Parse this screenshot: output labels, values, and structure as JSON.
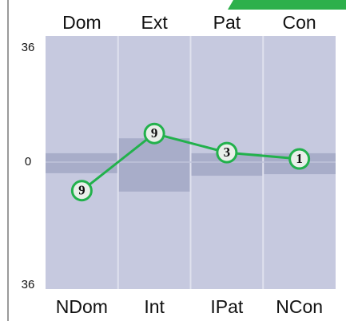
{
  "chart_data": {
    "type": "line",
    "categories": [
      "Dom",
      "Ext",
      "Pat",
      "Con"
    ],
    "categories_bottom": [
      "NDom",
      "Int",
      "IPat",
      "NCon"
    ],
    "series": [
      {
        "color": "#22b14c",
        "values": [
          -9,
          9,
          3,
          1
        ],
        "value_labels": [
          "9",
          "9",
          "3",
          "1"
        ]
      }
    ],
    "bands": [
      [
        -3.5,
        2.8
      ],
      [
        -9.3,
        7.5
      ],
      [
        -4.3,
        2.8
      ],
      [
        -3.8,
        2.8
      ]
    ],
    "ylim": [
      -36,
      36
    ],
    "yticks": [
      {
        "value": 36,
        "label": "36"
      },
      0,
      {
        "value": -36,
        "label": "36"
      }
    ]
  }
}
